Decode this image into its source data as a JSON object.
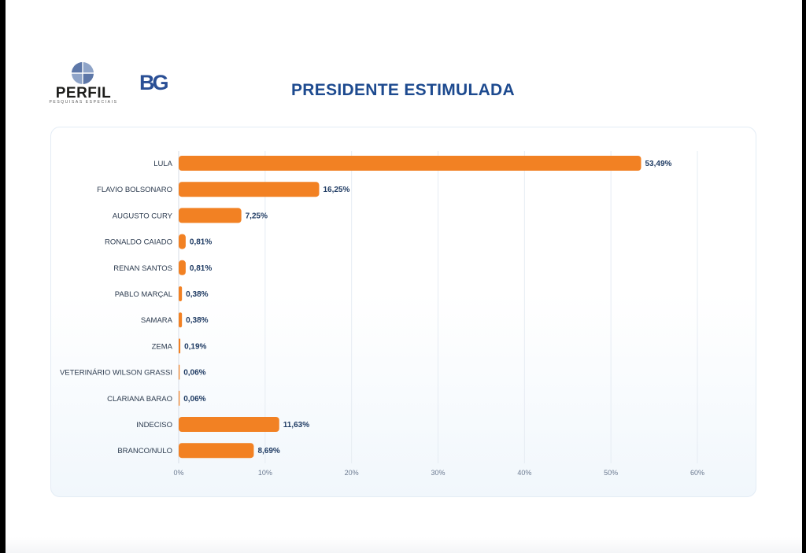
{
  "logos": {
    "perfil_name": "PERFIL",
    "perfil_tagline": "PESQUISAS ESPECIAIS",
    "bg_mark": "BG"
  },
  "colors": {
    "bar": "#f28123",
    "title": "#1d4a8f",
    "label": "#2b3a4e",
    "value": "#1f3b63",
    "grid": "#e6ecf3"
  },
  "chart_data": {
    "type": "bar",
    "orientation": "horizontal",
    "title": "PRESIDENTE ESTIMULADA",
    "categories": [
      "LULA",
      "FLAVIO BOLSONARO",
      "AUGUSTO CURY",
      "RONALDO CAIADO",
      "RENAN SANTOS",
      "PABLO MARÇAL",
      "SAMARA",
      "ZEMA",
      "VETERINÁRIO WILSON GRASSI",
      "CLARIANA BARAO",
      "INDECISO",
      "BRANCO/NULO"
    ],
    "values": [
      53.49,
      16.25,
      7.25,
      0.81,
      0.81,
      0.38,
      0.38,
      0.19,
      0.06,
      0.06,
      11.63,
      8.69
    ],
    "value_labels": [
      "53,49%",
      "16,25%",
      "7,25%",
      "0,81%",
      "0,81%",
      "0,38%",
      "0,38%",
      "0,19%",
      "0,06%",
      "0,06%",
      "11,63%",
      "8,69%"
    ],
    "xlim": [
      0,
      60
    ],
    "xticks": [
      0,
      10,
      20,
      30,
      40,
      50,
      60
    ],
    "xtick_labels": [
      "0%",
      "10%",
      "20%",
      "30%",
      "40%",
      "50%",
      "60%"
    ],
    "xlabel": "",
    "ylabel": "",
    "grid": true,
    "legend": "none"
  }
}
